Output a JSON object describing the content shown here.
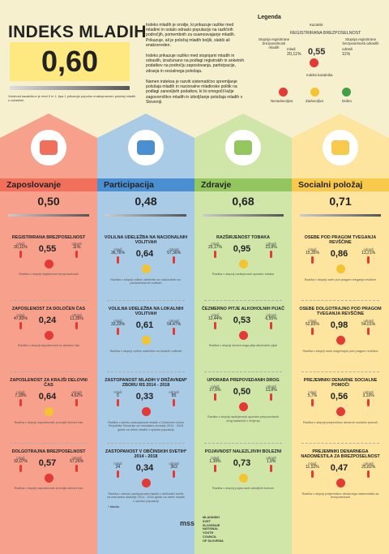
{
  "header": {
    "title": "INDEKS MLADIH",
    "index_value": "0,60",
    "index_note": "Vrednost kazalnikov je med 0 in 1, tipa 1 prikazuje popolno enakopravnen položaj mladih z odraslimi.",
    "desc1": "Indeks mladih je orodje, ki prikazuje razlike med mladimi in ostalo odraslo populacijo na različnih področjih, pomembnih za osamosvajanje mladih. Prikazuje, ali je položaj mladih boljši, slabši ali enakovreden.",
    "desc2": "Indeks prikazuje razliko med stopnjami mladih in odraslih, izračunano na podlagi registrskih in anketnih podatkov na področju zaposlovanja, participacije, zdravja in socialnega položaja.",
    "desc3": "Namen indeksa je razviti sistematično spremljanje položaja mladih in nacionalne mladinske politik na podlagi zanesljivih podatkov, ki bi omogočil lažje zagovorništvo mladih in izboljšanje položaja mladih v Sloveniji."
  },
  "legend": {
    "title": "Legenda",
    "kazalnik": "Kazalnik",
    "example_title": "REGISTRIRANA BREZPOSELNOST",
    "mladi_label": "mladi",
    "mladi_value": "20,11%",
    "value": "0,55",
    "odrasli_label": "odrasli",
    "odrasli_value": "11%",
    "stopnja_mladi": "Stopnja registrirane brezposelnosti mladih",
    "stopnja_odrasli": "Stopnja registrirane brezposelnosti odraslih",
    "indeks_kazalnika": "Indeks kazalnika",
    "faces": [
      "Nezadovoljivo",
      "Zadovoljivo",
      "Dobro"
    ],
    "colors": [
      "#e53935",
      "#f4c430",
      "#43a047"
    ]
  },
  "columns": [
    {
      "name": "Zaposlovanje",
      "value": "0,50",
      "color": "#f7a08c",
      "head_color": "#f16f5b",
      "icon": "briefcase-icon",
      "indicators": [
        {
          "title": "REGISTRIRANA BREZPOSELNOST",
          "mladi": "20,11%",
          "value": "0,55",
          "odrasli": "11%",
          "face": "red",
          "note": "Razlika v stopnji registrirane brezposelnosti"
        },
        {
          "title": "ZAPOSLENOST ZA DOLOČEN ČAS",
          "mladi": "47,83%",
          "value": "0,24",
          "odrasli": "11,35%",
          "face": "red",
          "note": "Razlika v stopnji zaposlenosti za določen čas"
        },
        {
          "title": "ZAPOSLENOST ZA KRAJŠI DELOVNI ČAS",
          "mladi": "7,18%",
          "value": "0,64",
          "odrasli": "4,62%",
          "face": "yellow",
          "note": "Razlika v stopnji zaposlenosti za krajši delovni čas"
        },
        {
          "title": "DOLGOTRAJNA BREZPOSELNOST",
          "mladi": "32,07%",
          "value": "0,57",
          "odrasli": "57,26%",
          "face": "red",
          "note": "Razlika v stopnji zaposlenosti za krajši delovni čas"
        }
      ]
    },
    {
      "name": "Participacija",
      "value": "0,48",
      "color": "#a9cbe6",
      "head_color": "#4a8fd1",
      "icon": "hand-icon",
      "indicators": [
        {
          "title": "VOLILNA UDELEŽBA NA NACIONALNIH VOLITVAH",
          "mladi": "36,76%",
          "value": "0,64",
          "odrasli": "57,36%",
          "face": "yellow",
          "note": "Razlika v stopnji volilne udeležbe na nacionalnih oz. parlamentarnih volitvah"
        },
        {
          "title": "VOLILNA UDELEŽBA NA LOKALNIH VOLITVAH",
          "mladi": "33,33%",
          "value": "0,61",
          "odrasli": "54,47%",
          "face": "yellow",
          "note": "Razlika v stopnji volilne udeležbe na lokalnih volitvah"
        },
        {
          "title": "ZASTOPANOST MLADIH V DRŽAVNEM* ZBORU RS 2014 - 2018",
          "mladi": "5",
          "value": "0,33",
          "odrasli": "85",
          "face": "red",
          "note": "Razlika v deležu zastopanosti mladih v Državnem zboru Republike Slovenije za mandatno obdobje 2014 - 2018 glede na delež mladih v splošni populaciji"
        },
        {
          "title": "ZASTOPANOST V OBČINSKIH SVETIH* 2014 - 2018",
          "mladi": "24",
          "value": "0,34",
          "odrasli": "363",
          "face": "red",
          "note": "Razlika v deležu zastopanosti mladih v občinskih svetih za mandatno obdobje 2014 - 2018 glede na delež mladih v splošni populaciji"
        }
      ]
    },
    {
      "name": "Zdravje",
      "value": "0,68",
      "color": "#cfe6a8",
      "head_color": "#94c660",
      "icon": "health-cross-icon",
      "indicators": [
        {
          "title": "RAZŠIRJENOST TOBAKA",
          "mladi": "25,17%",
          "value": "0,95",
          "odrasli": "23,8%",
          "face": "yellow",
          "note": "Razlika v stopnji razširjenosti uporabe tobaka"
        },
        {
          "title": "ČEZMERNO PITJE ALKOHOLNIH PIJAČ",
          "mladi": "12,44%",
          "value": "0,53",
          "odrasli": "6,55%",
          "face": "red",
          "note": "Razlika v stopnji čezmernega pitja alkoholnih pijač"
        },
        {
          "title": "UPORABA PREPOVEDANIH DROG",
          "mladi": "27,6%",
          "value": "0,50",
          "odrasli": "13,8%",
          "face": "red",
          "note": "Razlika v stopnji razširjenosti uporabe prepovedanih drog kadarkoli v življenju"
        },
        {
          "title": "POJAVNOST NALEZLJIVIH BOLEZNI",
          "mladi": "1,39%",
          "value": "0,73",
          "odrasli": "1,9%",
          "face": "yellow",
          "note": "Razlika v stopnji pojavnosti nalezljivih bolezni"
        }
      ]
    },
    {
      "name": "Socialni položaj",
      "value": "0,71",
      "color": "#fde5a0",
      "head_color": "#f8c94a",
      "icon": "piggy-bank-icon",
      "indicators": [
        {
          "title": "OSEBE POD PRAGOM TVEGANJA REVŠČINE",
          "mladi": "15,35%",
          "value": "0,86",
          "odrasli": "13,21%",
          "face": "yellow",
          "note": "Razlika v stopnji oseb pod pragom tveganja revščine"
        },
        {
          "title": "OSEBE DOLGOTRAJNO POD PRAGOM TVEGANJA REVŠČINE",
          "mladi": "52,83%",
          "value": "0,98",
          "odrasli": "54,01%",
          "face": "red",
          "note": "Razlika v stopnji oseb dolgotrajno pod pragom revščine"
        },
        {
          "title": "PREJEMNIKI DENARNE SOCIALNE POMOČI",
          "mladi": "5,7%",
          "value": "0,56",
          "odrasli": "3,19%",
          "face": "red",
          "note": "Razlika v stopnji prejemnikov denarne socialne pomoči"
        },
        {
          "title": "PREJEMNIKI DENARNEGA NADOMESTILA ZA BREZPOSELNOST",
          "mladi": "11,52%",
          "value": "0,47",
          "odrasli": "25,82%",
          "face": "red",
          "note": "Razlika v stopnji prejemnikov denarnega nadomestila za brezposelnost"
        }
      ]
    }
  ],
  "labels": {
    "mladi": "mladi",
    "odrasli": "odrasli"
  },
  "footnote": "* število",
  "logo": {
    "mark": "mss",
    "text": [
      "MLADINSKI",
      "SVET",
      "SLOVENIJE",
      "NATIONAL",
      "YOUTH",
      "COUNCIL",
      "OF SLOVENIA"
    ]
  }
}
